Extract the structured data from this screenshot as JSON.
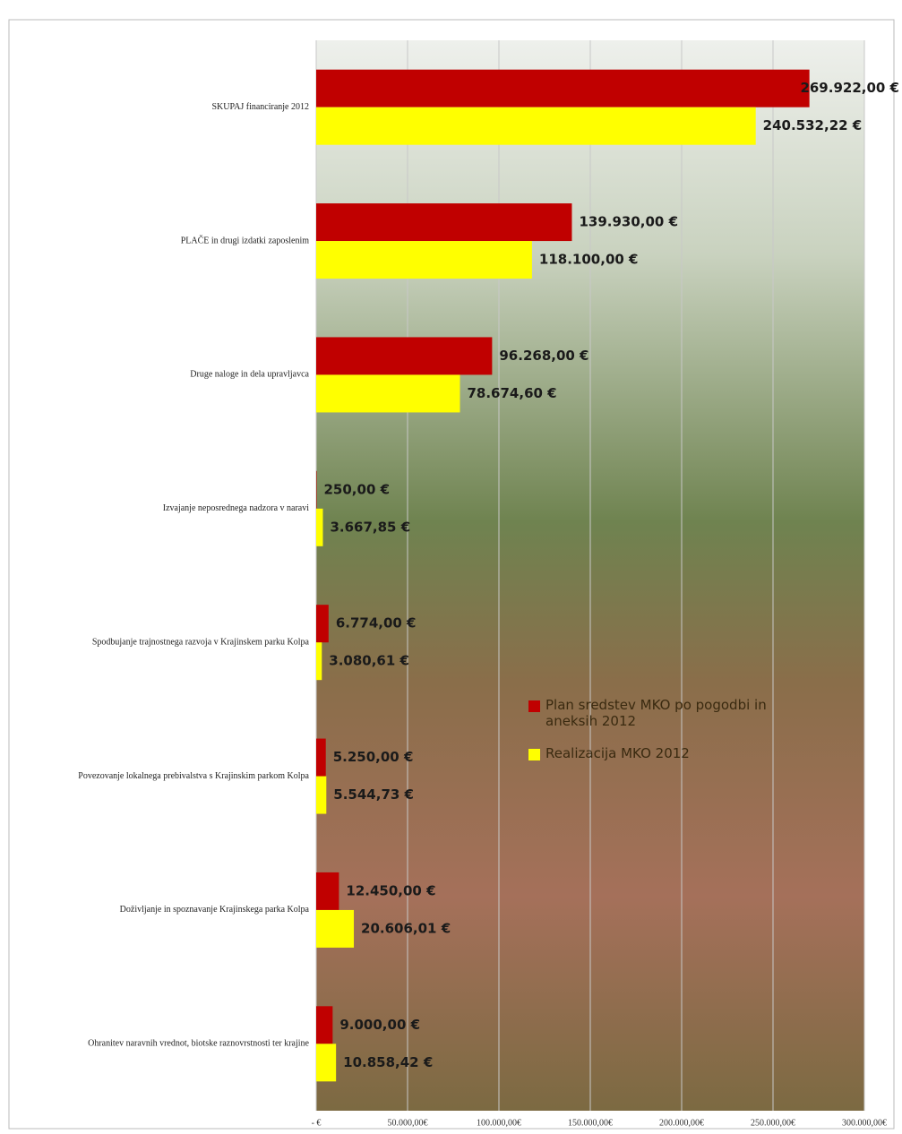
{
  "chart_data": {
    "type": "hbar",
    "categories": [
      "SKUPAJ financiranje 2012",
      "PLAČE in drugi izdatki zaposlenim",
      "Druge naloge in dela upravljavca",
      "Izvajanje neposrednega nadzora v naravi",
      "Spodbujanje trajnostnega razvoja v Krajinskem parku Kolpa",
      "Povezovanje lokalnega prebivalstva s Krajinskim parkom Kolpa",
      "Doživljanje in spoznavanje Krajinskega parka Kolpa",
      "Ohranitev naravnih vrednot, biotske raznovrstnosti ter krajine"
    ],
    "series": [
      {
        "name": "Plan sredstev MKO po pogodbi in aneksih 2012",
        "color": "#c00000",
        "values": [
          269922.0,
          139930.0,
          96268.0,
          250.0,
          6774.0,
          5250.0,
          12450.0,
          9000.0
        ],
        "value_labels": [
          "269.922,00 €",
          "139.930,00 €",
          "96.268,00 €",
          "250,00 €",
          "6.774,00 €",
          "5.250,00 €",
          "12.450,00 €",
          "9.000,00 €"
        ]
      },
      {
        "name": "Realizacija MKO  2012",
        "color": "#ffff00",
        "values": [
          240532.22,
          118100.0,
          78674.6,
          3667.85,
          3080.61,
          5544.73,
          20606.01,
          10858.42
        ],
        "value_labels": [
          "240.532,22 €",
          "118.100,00 €",
          "78.674,60 €",
          "3.667,85 €",
          "3.080,61 €",
          "5.544,73 €",
          "20.606,01 €",
          "10.858,42 €"
        ]
      }
    ],
    "xlim": [
      0,
      300000
    ],
    "xticks": [
      {
        "value": 0,
        "label": "- €"
      },
      {
        "value": 50000,
        "label": "50.000,00€"
      },
      {
        "value": 100000,
        "label": "100.000,00€"
      },
      {
        "value": 150000,
        "label": "150.000,00€"
      },
      {
        "value": 200000,
        "label": "200.000,00€"
      },
      {
        "value": 250000,
        "label": "250.000,00€"
      },
      {
        "value": 300000,
        "label": "300.000,00€"
      }
    ],
    "grid": true
  }
}
